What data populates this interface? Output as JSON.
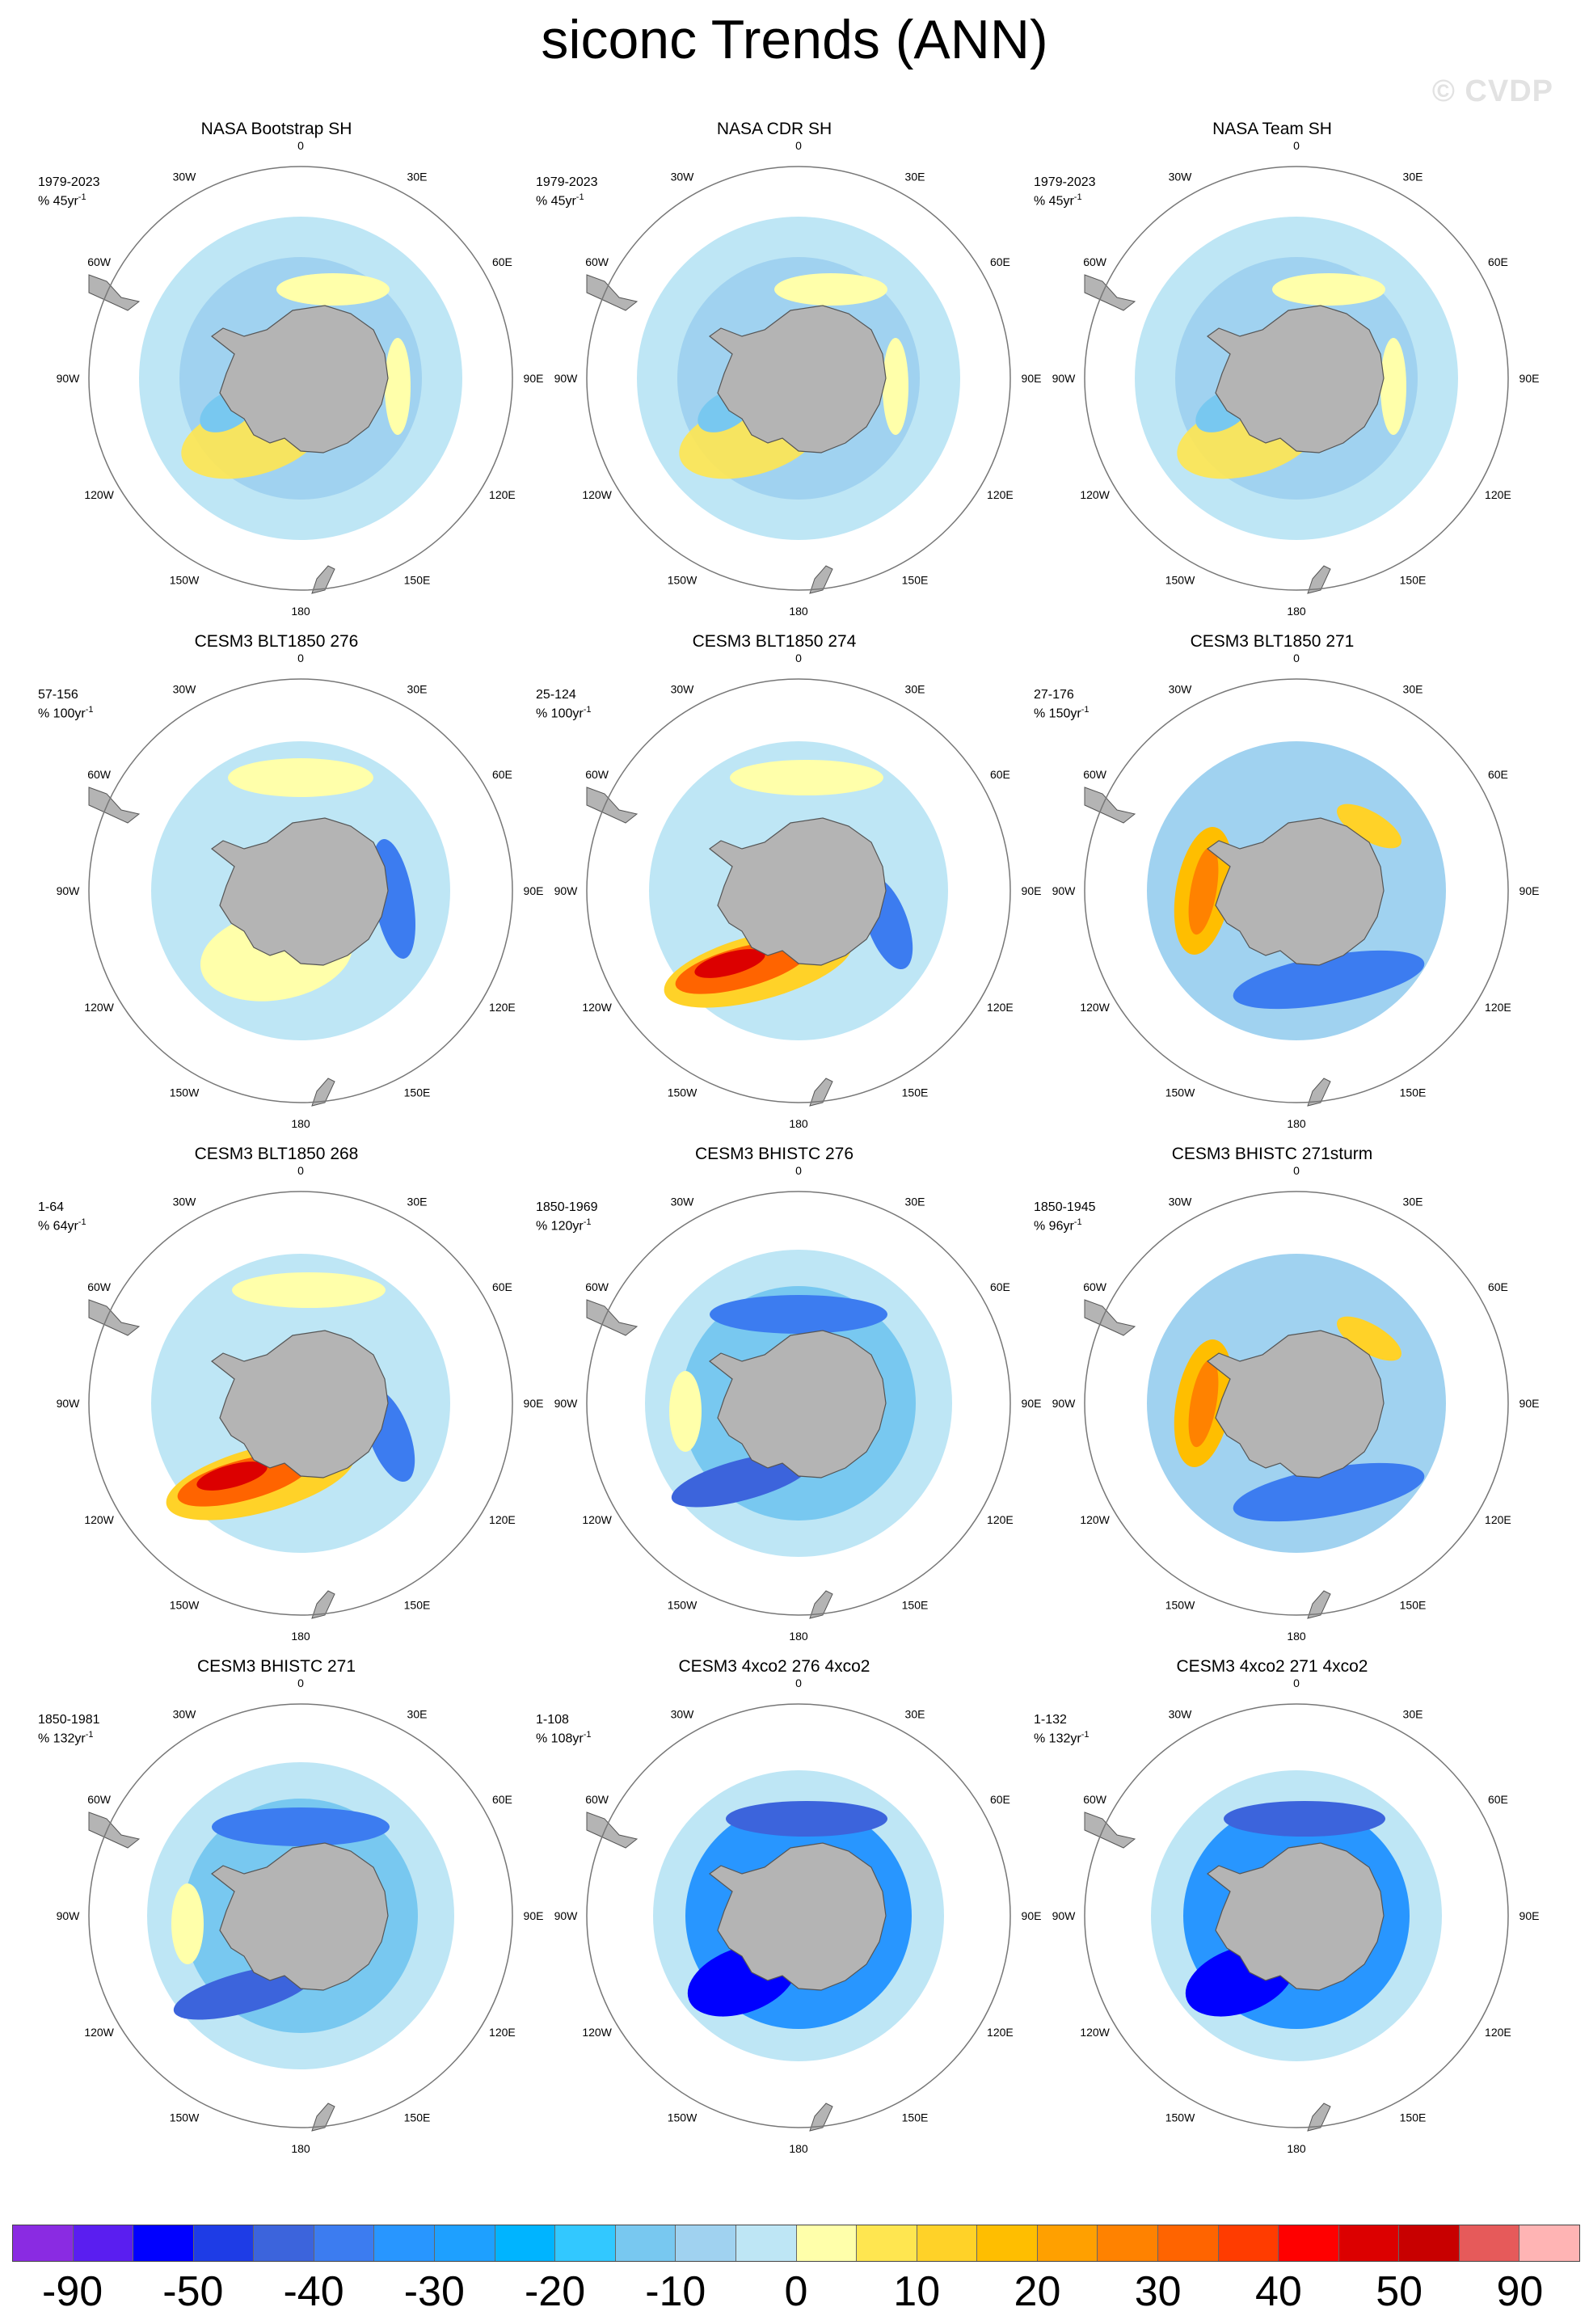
{
  "title": "siconc Trends (ANN)",
  "watermark": "© CVDP",
  "longitude_labels": [
    "0",
    "30E",
    "60E",
    "90E",
    "120E",
    "150E",
    "180",
    "150W",
    "120W",
    "90W",
    "60W",
    "30W"
  ],
  "panels": [
    {
      "title": "NASA Bootstrap SH",
      "period": "1979-2023",
      "trend_unit": "% 45yr",
      "trend_exp": "-1",
      "pattern": "obs"
    },
    {
      "title": "NASA CDR SH",
      "period": "1979-2023",
      "trend_unit": "% 45yr",
      "trend_exp": "-1",
      "pattern": "obs"
    },
    {
      "title": "NASA Team SH",
      "period": "1979-2023",
      "trend_unit": "% 45yr",
      "trend_exp": "-1",
      "pattern": "obs"
    },
    {
      "title": "CESM3 BLT1850 276",
      "period": "57-156",
      "trend_unit": "% 100yr",
      "trend_exp": "-1",
      "pattern": "mixed"
    },
    {
      "title": "CESM3 BLT1850 274",
      "period": "25-124",
      "trend_unit": "% 100yr",
      "trend_exp": "-1",
      "pattern": "ross_gain"
    },
    {
      "title": "CESM3 BLT1850 271",
      "period": "27-176",
      "trend_unit": "% 150yr",
      "trend_exp": "-1",
      "pattern": "weddell_gain"
    },
    {
      "title": "CESM3 BLT1850 268",
      "period": "1-64",
      "trend_unit": "% 64yr",
      "trend_exp": "-1",
      "pattern": "ross_gain"
    },
    {
      "title": "CESM3 BHISTC 276",
      "period": "1850-1969",
      "trend_unit": "% 120yr",
      "trend_exp": "-1",
      "pattern": "loss"
    },
    {
      "title": "CESM3 BHISTC 271sturm",
      "period": "1850-1945",
      "trend_unit": "% 96yr",
      "trend_exp": "-1",
      "pattern": "weddell_gain"
    },
    {
      "title": "CESM3 BHISTC 271",
      "period": "1850-1981",
      "trend_unit": "% 132yr",
      "trend_exp": "-1",
      "pattern": "loss"
    },
    {
      "title": "CESM3 4xco2 276 4xco2",
      "period": "1-108",
      "trend_unit": "% 108yr",
      "trend_exp": "-1",
      "pattern": "strong_loss"
    },
    {
      "title": "CESM3 4xco2 271 4xco2",
      "period": "1-132",
      "trend_unit": "% 132yr",
      "trend_exp": "-1",
      "pattern": "strong_loss"
    }
  ],
  "colorbar": {
    "colors": [
      "#8a2be2",
      "#5a1ef0",
      "#0000ff",
      "#1e3ce6",
      "#3c64dc",
      "#3c7cf0",
      "#2896ff",
      "#1ea0ff",
      "#00b4ff",
      "#32c8ff",
      "#78c8f0",
      "#a0d2f0",
      "#bee6f5",
      "#ffffaa",
      "#ffe650",
      "#ffd228",
      "#ffbe00",
      "#ffa000",
      "#ff8200",
      "#ff6400",
      "#ff3c00",
      "#ff0000",
      "#dc0000",
      "#c80000",
      "#e65a5a",
      "#ffb4b4"
    ],
    "tick_labels": [
      "-90",
      "-50",
      "-40",
      "-30",
      "-20",
      "-10",
      "0",
      "10",
      "20",
      "30",
      "40",
      "50",
      "90"
    ]
  }
}
